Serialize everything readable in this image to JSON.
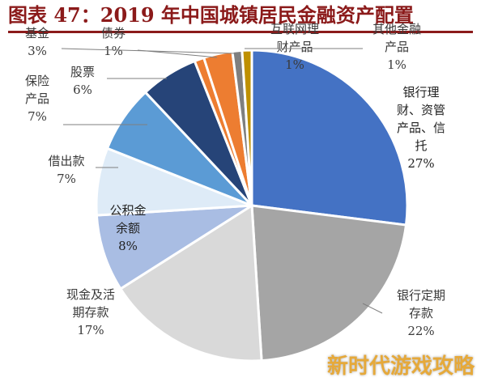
{
  "chart_data": {
    "type": "pie",
    "title": "图表 47：2019 年中国城镇居民金融资产配置",
    "slices": [
      {
        "label_lines": [
          "银行理",
          "财、资管",
          "产品、信",
          "托"
        ],
        "pct_label": "27%",
        "value": 27,
        "color": "#4472c4"
      },
      {
        "label_lines": [
          "银行定期",
          "存款"
        ],
        "pct_label": "22%",
        "value": 22,
        "color": "#a5a5a5"
      },
      {
        "label_lines": [
          "现金及活",
          "期存款"
        ],
        "pct_label": "17%",
        "value": 17,
        "color": "#d9d9d9"
      },
      {
        "label_lines": [
          "公积金",
          "余额"
        ],
        "pct_label": "8%",
        "value": 8,
        "color": "#a9bde3"
      },
      {
        "label_lines": [
          "借出款"
        ],
        "pct_label": "7%",
        "value": 7,
        "color": "#deebf7"
      },
      {
        "label_lines": [
          "保险",
          "产品"
        ],
        "pct_label": "7%",
        "value": 7,
        "color": "#5b9bd5"
      },
      {
        "label_lines": [
          "股票"
        ],
        "pct_label": "6%",
        "value": 6,
        "color": "#264478"
      },
      {
        "label_lines": [
          "债券"
        ],
        "pct_label": "1%",
        "value": 1,
        "color": "#ed7d31"
      },
      {
        "label_lines": [
          "基金"
        ],
        "pct_label": "3%",
        "value": 3,
        "color": "#ed7d31"
      },
      {
        "label_lines": [
          "互联网理",
          "财产品"
        ],
        "pct_label": "1%",
        "value": 1,
        "color": "#7f7f7f"
      },
      {
        "label_lines": [
          "其他金融",
          "产品"
        ],
        "pct_label": "1%",
        "value": 1,
        "color": "#bf9000"
      }
    ]
  },
  "watermark": "新时代游戏攻略"
}
